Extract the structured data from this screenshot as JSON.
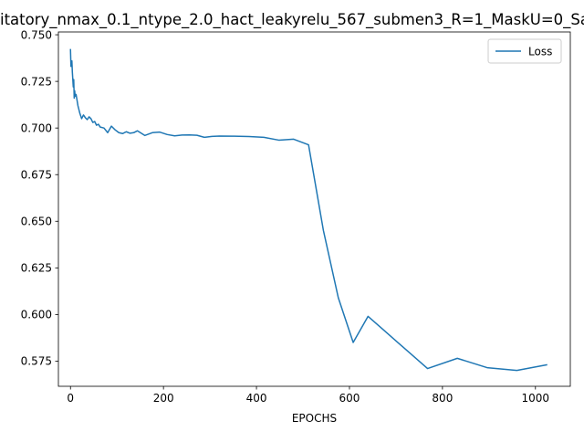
{
  "chart_data": {
    "type": "line",
    "title": "itatory_nmax_0.1_ntype_2.0_hact_leakyrelu_567_submen3_R=1_MaskU=0_Sa",
    "xlabel": "EPOCHS",
    "ylabel": "",
    "xlim": [
      -26,
      1075
    ],
    "ylim": [
      0.5615,
      0.7515
    ],
    "x_ticks": [
      0,
      200,
      400,
      600,
      800,
      1000
    ],
    "y_ticks": [
      0.575,
      0.6,
      0.625,
      0.65,
      0.675,
      0.7,
      0.725,
      0.75
    ],
    "x_tick_labels": [
      "0",
      "200",
      "400",
      "600",
      "800",
      "1000"
    ],
    "y_tick_labels": [
      "0.575",
      "0.600",
      "0.625",
      "0.650",
      "0.675",
      "0.700",
      "0.725",
      "0.750"
    ],
    "grid": false,
    "legend_position": "top-right",
    "series": [
      {
        "name": "Loss",
        "color": "#1f77b4",
        "x": [
          0,
          1,
          2,
          3,
          4,
          5,
          6,
          7,
          8,
          9,
          10,
          12,
          14,
          16,
          18,
          20,
          24,
          28,
          32,
          36,
          40,
          44,
          48,
          52,
          56,
          60,
          64,
          72,
          80,
          88,
          96,
          104,
          112,
          120,
          128,
          136,
          144,
          160,
          176,
          192,
          208,
          224,
          240,
          256,
          272,
          288,
          304,
          320,
          352,
          384,
          416,
          448,
          480,
          512,
          544,
          576,
          608,
          640,
          672,
          704,
          768,
          832,
          896,
          960,
          1024
        ],
        "y": [
          0.742,
          0.733,
          0.734,
          0.736,
          0.73,
          0.726,
          0.722,
          0.726,
          0.716,
          0.72,
          0.717,
          0.718,
          0.715,
          0.712,
          0.71,
          0.708,
          0.705,
          0.707,
          0.7055,
          0.7045,
          0.706,
          0.705,
          0.703,
          0.7035,
          0.7015,
          0.702,
          0.7005,
          0.7,
          0.6975,
          0.701,
          0.699,
          0.6975,
          0.697,
          0.698,
          0.6972,
          0.6975,
          0.6985,
          0.696,
          0.6975,
          0.6978,
          0.6965,
          0.6958,
          0.6962,
          0.6963,
          0.6961,
          0.695,
          0.6955,
          0.6957,
          0.6956,
          0.6954,
          0.695,
          0.6935,
          0.694,
          0.691,
          0.645,
          0.609,
          0.585,
          0.599,
          0.592,
          0.585,
          0.571,
          0.5765,
          0.5715,
          0.57,
          0.573
        ]
      }
    ]
  }
}
